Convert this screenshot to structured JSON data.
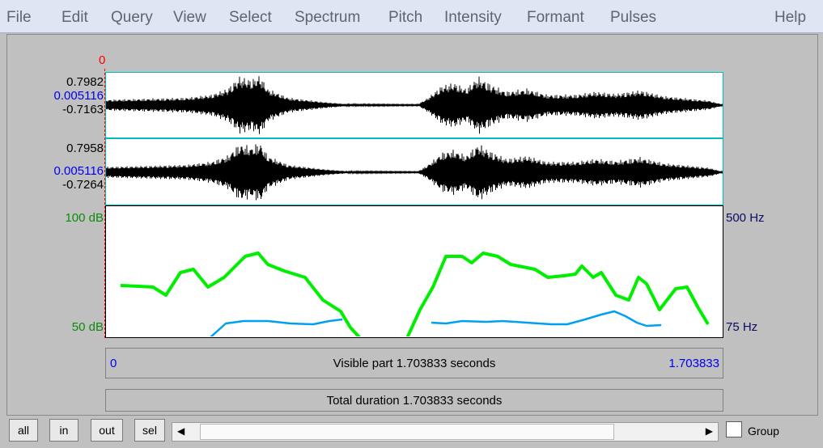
{
  "menu": {
    "items": [
      "File",
      "Edit",
      "Query",
      "View",
      "Select",
      "Spectrum",
      "Pitch",
      "Intensity",
      "Formant",
      "Pulses"
    ],
    "help": "Help"
  },
  "cursor": {
    "time_label": "0"
  },
  "channel1": {
    "max": "0.7982",
    "cursor_value": "0.005116",
    "min": "-0.7163"
  },
  "channel2": {
    "max": "0.7958",
    "cursor_value": "0.005116",
    "min": "-0.7264"
  },
  "analysis": {
    "intensity_top": "100 dB",
    "intensity_bottom": "50 dB",
    "pitch_top": "500 Hz",
    "pitch_bottom": "75 Hz"
  },
  "visible_bar": {
    "start": "0",
    "text": "Visible part 1.703833 seconds",
    "end": "1.703833"
  },
  "total_bar": {
    "text": "Total duration 1.703833 seconds"
  },
  "buttons": {
    "all": "all",
    "in": "in",
    "out": "out",
    "sel": "sel"
  },
  "group_label": "Group",
  "colors": {
    "intensity": "#00ee00",
    "pitch": "#00a0f0",
    "cursor": "#ff0000",
    "channel_border": "#00bcbc",
    "intensity_label": "#0b8a0b",
    "pitch_label": "#0a0a66"
  }
}
